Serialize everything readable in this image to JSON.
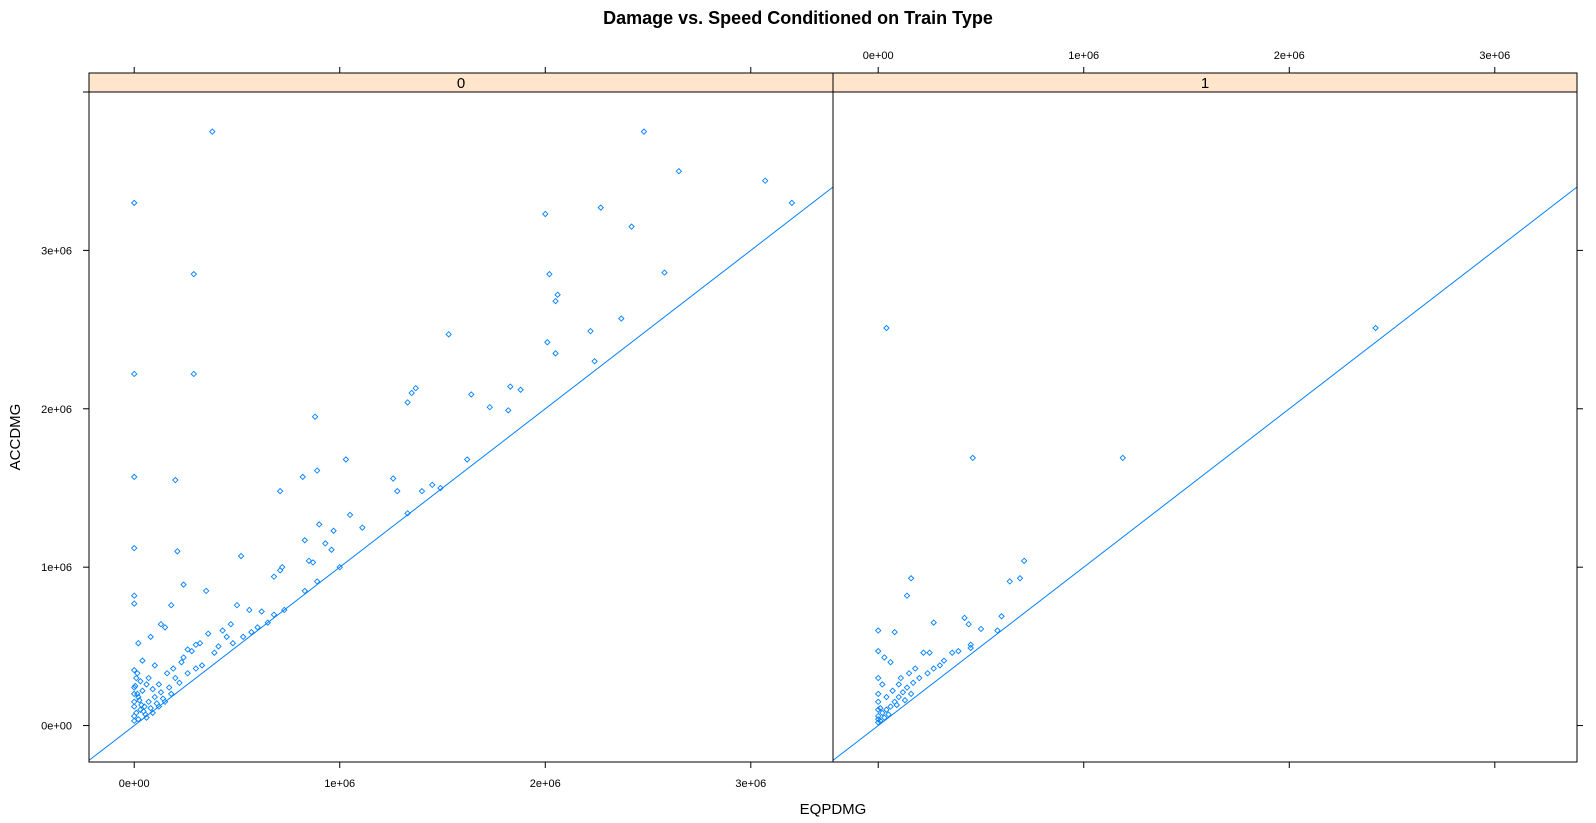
{
  "chart_data": {
    "type": "scatter",
    "title": "Damage vs. Speed Conditioned on Train Type",
    "xlabel": "EQPDMG",
    "ylabel": "ACCDMG",
    "xlim": [
      -220000,
      3400000
    ],
    "ylim": [
      -230000,
      4000000
    ],
    "x_ticks": [
      0,
      1000000,
      2000000,
      3000000
    ],
    "x_tick_labels": [
      "0e+00",
      "1e+06",
      "2e+06",
      "3e+06"
    ],
    "y_ticks": [
      0,
      1000000,
      2000000,
      3000000
    ],
    "y_tick_labels": [
      "0e+00",
      "1e+06",
      "2e+06",
      "3e+06"
    ],
    "grid": false,
    "colors": {
      "points": "#0080ff",
      "line": "#0080ff",
      "strip_bg": "#ffe5cc",
      "frame": "#000000"
    },
    "panels": [
      {
        "strip_label": "0",
        "reference_line": {
          "intercept": 0,
          "slope": 1
        },
        "points": [
          [
            0,
            3300000
          ],
          [
            0,
            2220000
          ],
          [
            0,
            1570000
          ],
          [
            0,
            1120000
          ],
          [
            0,
            820000
          ],
          [
            0,
            770000
          ],
          [
            380000,
            3750000
          ],
          [
            290000,
            2850000
          ],
          [
            290000,
            2220000
          ],
          [
            200000,
            1550000
          ],
          [
            210000,
            1100000
          ],
          [
            2480000,
            3750000
          ],
          [
            2650000,
            3500000
          ],
          [
            3070000,
            3440000
          ],
          [
            3200000,
            3300000
          ],
          [
            2000000,
            3230000
          ],
          [
            2270000,
            3270000
          ],
          [
            2420000,
            3150000
          ],
          [
            2580000,
            2860000
          ],
          [
            2020000,
            2850000
          ],
          [
            2060000,
            2720000
          ],
          [
            2050000,
            2680000
          ],
          [
            2370000,
            2570000
          ],
          [
            1530000,
            2470000
          ],
          [
            2220000,
            2490000
          ],
          [
            2010000,
            2420000
          ],
          [
            2050000,
            2350000
          ],
          [
            2240000,
            2300000
          ],
          [
            1370000,
            2130000
          ],
          [
            1350000,
            2100000
          ],
          [
            1330000,
            2040000
          ],
          [
            1640000,
            2090000
          ],
          [
            1730000,
            2010000
          ],
          [
            1830000,
            2140000
          ],
          [
            1880000,
            2120000
          ],
          [
            1820000,
            1990000
          ],
          [
            880000,
            1950000
          ],
          [
            1030000,
            1680000
          ],
          [
            1620000,
            1680000
          ],
          [
            890000,
            1610000
          ],
          [
            820000,
            1570000
          ],
          [
            710000,
            1480000
          ],
          [
            1260000,
            1560000
          ],
          [
            1280000,
            1480000
          ],
          [
            1400000,
            1480000
          ],
          [
            1450000,
            1520000
          ],
          [
            1490000,
            1500000
          ],
          [
            1330000,
            1340000
          ],
          [
            1050000,
            1330000
          ],
          [
            900000,
            1270000
          ],
          [
            970000,
            1230000
          ],
          [
            1110000,
            1250000
          ],
          [
            830000,
            1170000
          ],
          [
            930000,
            1150000
          ],
          [
            960000,
            1110000
          ],
          [
            870000,
            1030000
          ],
          [
            1000000,
            1000000
          ],
          [
            850000,
            1040000
          ],
          [
            830000,
            850000
          ],
          [
            890000,
            910000
          ],
          [
            720000,
            1000000
          ],
          [
            710000,
            980000
          ],
          [
            680000,
            940000
          ],
          [
            520000,
            1070000
          ],
          [
            240000,
            890000
          ],
          [
            350000,
            850000
          ],
          [
            180000,
            760000
          ],
          [
            500000,
            760000
          ],
          [
            560000,
            730000
          ],
          [
            620000,
            720000
          ],
          [
            680000,
            700000
          ],
          [
            730000,
            730000
          ],
          [
            650000,
            650000
          ],
          [
            600000,
            620000
          ],
          [
            570000,
            590000
          ],
          [
            530000,
            560000
          ],
          [
            480000,
            520000
          ],
          [
            450000,
            560000
          ],
          [
            410000,
            500000
          ],
          [
            390000,
            460000
          ],
          [
            360000,
            580000
          ],
          [
            300000,
            510000
          ],
          [
            260000,
            480000
          ],
          [
            230000,
            400000
          ],
          [
            130000,
            640000
          ],
          [
            150000,
            620000
          ],
          [
            80000,
            560000
          ],
          [
            20000,
            520000
          ],
          [
            40000,
            410000
          ],
          [
            100000,
            380000
          ],
          [
            160000,
            330000
          ],
          [
            200000,
            300000
          ],
          [
            260000,
            330000
          ],
          [
            300000,
            360000
          ],
          [
            330000,
            380000
          ],
          [
            220000,
            270000
          ],
          [
            170000,
            240000
          ],
          [
            130000,
            210000
          ],
          [
            100000,
            180000
          ],
          [
            70000,
            150000
          ],
          [
            50000,
            120000
          ],
          [
            30000,
            100000
          ],
          [
            10000,
            80000
          ],
          [
            0,
            60000
          ],
          [
            60000,
            260000
          ],
          [
            40000,
            220000
          ],
          [
            20000,
            180000
          ],
          [
            10000,
            300000
          ],
          [
            5000,
            250000
          ],
          [
            15000,
            200000
          ],
          [
            25000,
            160000
          ],
          [
            35000,
            130000
          ],
          [
            45000,
            90000
          ],
          [
            55000,
            70000
          ],
          [
            80000,
            110000
          ],
          [
            110000,
            140000
          ],
          [
            140000,
            170000
          ],
          [
            180000,
            200000
          ],
          [
            0,
            30000
          ],
          [
            20000,
            40000
          ],
          [
            60000,
            50000
          ],
          [
            90000,
            80000
          ],
          [
            120000,
            120000
          ],
          [
            150000,
            150000
          ],
          [
            0,
            350000
          ],
          [
            15000,
            330000
          ],
          [
            30000,
            280000
          ],
          [
            70000,
            300000
          ],
          [
            0,
            150000
          ],
          [
            0,
            120000
          ],
          [
            0,
            200000
          ],
          [
            0,
            240000
          ],
          [
            90000,
            230000
          ],
          [
            120000,
            260000
          ],
          [
            190000,
            360000
          ],
          [
            240000,
            430000
          ],
          [
            280000,
            470000
          ],
          [
            320000,
            520000
          ],
          [
            430000,
            600000
          ],
          [
            470000,
            640000
          ]
        ]
      },
      {
        "strip_label": "1",
        "reference_line": {
          "intercept": 0,
          "slope": 1
        },
        "points": [
          [
            40000,
            2510000
          ],
          [
            460000,
            1690000
          ],
          [
            1190000,
            1690000
          ],
          [
            2420000,
            2510000
          ],
          [
            160000,
            930000
          ],
          [
            140000,
            820000
          ],
          [
            710000,
            1040000
          ],
          [
            640000,
            910000
          ],
          [
            690000,
            930000
          ],
          [
            600000,
            690000
          ],
          [
            420000,
            680000
          ],
          [
            440000,
            640000
          ],
          [
            270000,
            650000
          ],
          [
            500000,
            610000
          ],
          [
            580000,
            600000
          ],
          [
            0,
            600000
          ],
          [
            80000,
            590000
          ],
          [
            450000,
            510000
          ],
          [
            450000,
            490000
          ],
          [
            390000,
            470000
          ],
          [
            360000,
            460000
          ],
          [
            250000,
            460000
          ],
          [
            220000,
            460000
          ],
          [
            320000,
            410000
          ],
          [
            300000,
            380000
          ],
          [
            270000,
            360000
          ],
          [
            240000,
            330000
          ],
          [
            200000,
            300000
          ],
          [
            170000,
            270000
          ],
          [
            140000,
            240000
          ],
          [
            120000,
            210000
          ],
          [
            100000,
            180000
          ],
          [
            80000,
            150000
          ],
          [
            60000,
            120000
          ],
          [
            40000,
            100000
          ],
          [
            20000,
            80000
          ],
          [
            0,
            60000
          ],
          [
            0,
            40000
          ],
          [
            10000,
            30000
          ],
          [
            30000,
            50000
          ],
          [
            50000,
            70000
          ],
          [
            0,
            470000
          ],
          [
            30000,
            430000
          ],
          [
            60000,
            400000
          ],
          [
            0,
            300000
          ],
          [
            20000,
            260000
          ],
          [
            0,
            200000
          ],
          [
            0,
            150000
          ],
          [
            40000,
            180000
          ],
          [
            70000,
            220000
          ],
          [
            100000,
            260000
          ],
          [
            110000,
            300000
          ],
          [
            150000,
            330000
          ],
          [
            180000,
            360000
          ],
          [
            10000,
            110000
          ],
          [
            90000,
            130000
          ],
          [
            130000,
            160000
          ],
          [
            160000,
            200000
          ],
          [
            0,
            100000
          ],
          [
            0,
            20000
          ]
        ]
      }
    ]
  }
}
